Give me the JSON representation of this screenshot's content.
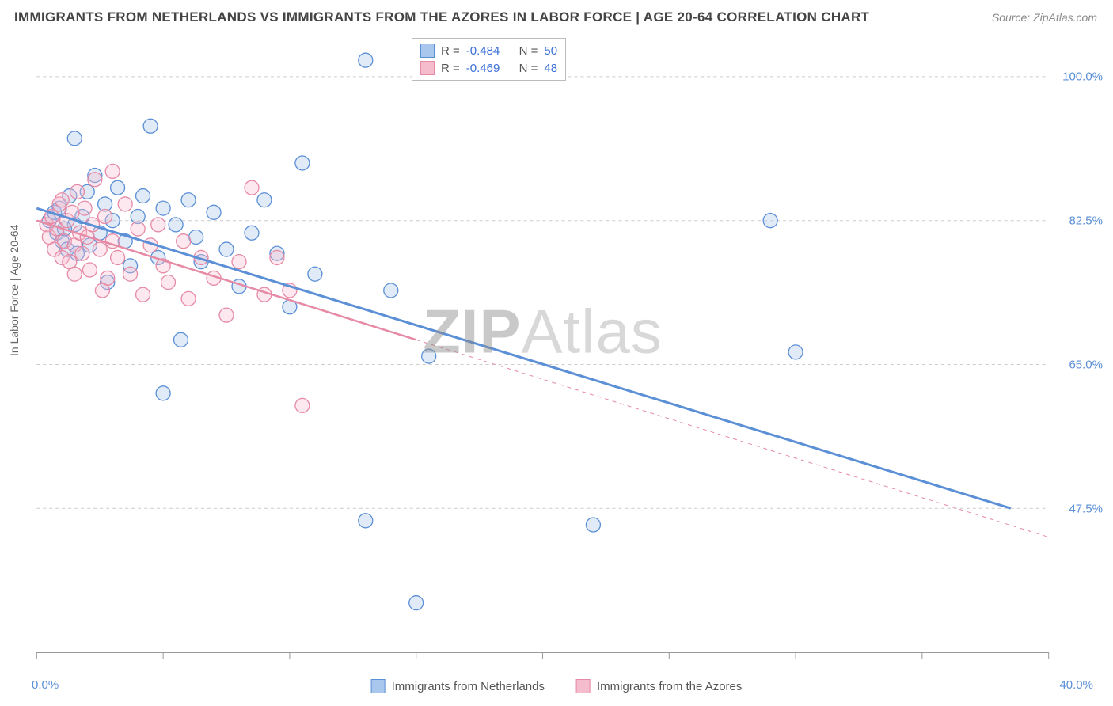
{
  "title": "IMMIGRANTS FROM NETHERLANDS VS IMMIGRANTS FROM THE AZORES IN LABOR FORCE | AGE 20-64 CORRELATION CHART",
  "source": "Source: ZipAtlas.com",
  "y_axis_label": "In Labor Force | Age 20-64",
  "watermark_a": "ZIP",
  "watermark_b": "Atlas",
  "chart": {
    "type": "scatter-with-regression",
    "xlim": [
      0.0,
      40.0
    ],
    "ylim": [
      30.0,
      105.0
    ],
    "x_tick_positions": [
      0,
      5,
      10,
      15,
      20,
      25,
      30,
      35,
      40
    ],
    "x_label_min": "0.0%",
    "x_label_max": "40.0%",
    "y_gridlines": [
      {
        "value": 47.5,
        "label": "47.5%"
      },
      {
        "value": 65.0,
        "label": "65.0%"
      },
      {
        "value": 82.5,
        "label": "82.5%"
      },
      {
        "value": 100.0,
        "label": "100.0%"
      }
    ],
    "background_color": "#ffffff",
    "grid_color": "#cccccc",
    "axis_color": "#999999",
    "label_color": "#5b8fd6",
    "marker_radius": 9,
    "marker_stroke_width": 1.3,
    "marker_fill_opacity": 0.35,
    "series": [
      {
        "id": "netherlands",
        "label": "Immigrants from Netherlands",
        "color_stroke": "#5b8fd6",
        "color_fill": "#a9c6ec",
        "R": "-0.484",
        "N": "50",
        "regression": {
          "x1": 0.0,
          "y1": 84.0,
          "x2": 38.5,
          "y2": 47.5,
          "width": 3,
          "dash": "none"
        },
        "points": [
          [
            0.5,
            82.5
          ],
          [
            0.7,
            83.5
          ],
          [
            0.8,
            81.0
          ],
          [
            0.9,
            84.0
          ],
          [
            1.0,
            80.0
          ],
          [
            1.2,
            79.0
          ],
          [
            1.3,
            85.5
          ],
          [
            1.5,
            82.0
          ],
          [
            1.5,
            92.5
          ],
          [
            1.6,
            78.5
          ],
          [
            1.8,
            83.0
          ],
          [
            2.0,
            86.0
          ],
          [
            2.1,
            79.5
          ],
          [
            2.3,
            88.0
          ],
          [
            2.5,
            81.0
          ],
          [
            2.7,
            84.5
          ],
          [
            2.8,
            75.0
          ],
          [
            3.0,
            82.5
          ],
          [
            3.2,
            86.5
          ],
          [
            3.5,
            80.0
          ],
          [
            3.7,
            77.0
          ],
          [
            4.0,
            83.0
          ],
          [
            4.2,
            85.5
          ],
          [
            4.5,
            94.0
          ],
          [
            4.8,
            78.0
          ],
          [
            5.0,
            84.0
          ],
          [
            5.5,
            82.0
          ],
          [
            5.7,
            68.0
          ],
          [
            6.0,
            85.0
          ],
          [
            6.3,
            80.5
          ],
          [
            6.5,
            77.5
          ],
          [
            7.0,
            83.5
          ],
          [
            7.5,
            79.0
          ],
          [
            8.0,
            74.5
          ],
          [
            8.5,
            81.0
          ],
          [
            5.0,
            61.5
          ],
          [
            9.0,
            85.0
          ],
          [
            9.5,
            78.5
          ],
          [
            10.0,
            72.0
          ],
          [
            10.5,
            89.5
          ],
          [
            11.0,
            76.0
          ],
          [
            13.0,
            102.0
          ],
          [
            13.0,
            46.0
          ],
          [
            14.0,
            74.0
          ],
          [
            15.0,
            36.0
          ],
          [
            15.5,
            66.0
          ],
          [
            22.0,
            45.5
          ],
          [
            29.0,
            82.5
          ],
          [
            30.0,
            66.5
          ],
          [
            1.1,
            81.5
          ]
        ]
      },
      {
        "id": "azores",
        "label": "Immigrants from the Azores",
        "color_stroke": "#e68aa5",
        "color_fill": "#f5bcce",
        "R": "-0.469",
        "N": "48",
        "regression_solid": {
          "x1": 0.0,
          "y1": 82.5,
          "x2": 15.0,
          "y2": 68.0,
          "width": 2.5
        },
        "regression_dashed": {
          "x1": 15.0,
          "y1": 68.0,
          "x2": 40.0,
          "y2": 44.0,
          "width": 1,
          "dash": "5,5"
        },
        "points": [
          [
            0.4,
            82.0
          ],
          [
            0.5,
            80.5
          ],
          [
            0.6,
            83.0
          ],
          [
            0.7,
            79.0
          ],
          [
            0.8,
            81.5
          ],
          [
            0.9,
            84.5
          ],
          [
            1.0,
            78.0
          ],
          [
            1.0,
            85.0
          ],
          [
            1.1,
            80.0
          ],
          [
            1.2,
            82.5
          ],
          [
            1.3,
            77.5
          ],
          [
            1.4,
            83.5
          ],
          [
            1.5,
            79.5
          ],
          [
            1.6,
            86.0
          ],
          [
            1.7,
            81.0
          ],
          [
            1.8,
            78.5
          ],
          [
            1.9,
            84.0
          ],
          [
            2.0,
            80.5
          ],
          [
            2.1,
            76.5
          ],
          [
            2.2,
            82.0
          ],
          [
            2.3,
            87.5
          ],
          [
            2.5,
            79.0
          ],
          [
            2.7,
            83.0
          ],
          [
            2.8,
            75.5
          ],
          [
            3.0,
            80.0
          ],
          [
            3.2,
            78.0
          ],
          [
            3.5,
            84.5
          ],
          [
            3.7,
            76.0
          ],
          [
            4.0,
            81.5
          ],
          [
            4.2,
            73.5
          ],
          [
            4.5,
            79.5
          ],
          [
            5.0,
            77.0
          ],
          [
            5.2,
            75.0
          ],
          [
            5.8,
            80.0
          ],
          [
            6.0,
            73.0
          ],
          [
            6.5,
            78.0
          ],
          [
            7.0,
            75.5
          ],
          [
            7.5,
            71.0
          ],
          [
            8.0,
            77.5
          ],
          [
            8.5,
            86.5
          ],
          [
            9.0,
            73.5
          ],
          [
            9.5,
            78.0
          ],
          [
            10.0,
            74.0
          ],
          [
            10.5,
            60.0
          ],
          [
            3.0,
            88.5
          ],
          [
            2.6,
            74.0
          ],
          [
            4.8,
            82.0
          ],
          [
            1.5,
            76.0
          ]
        ]
      }
    ],
    "stats_labels": {
      "R": "R =",
      "N": "N ="
    }
  },
  "legend": {
    "series1_label": "Immigrants from Netherlands",
    "series2_label": "Immigrants from the Azores"
  }
}
